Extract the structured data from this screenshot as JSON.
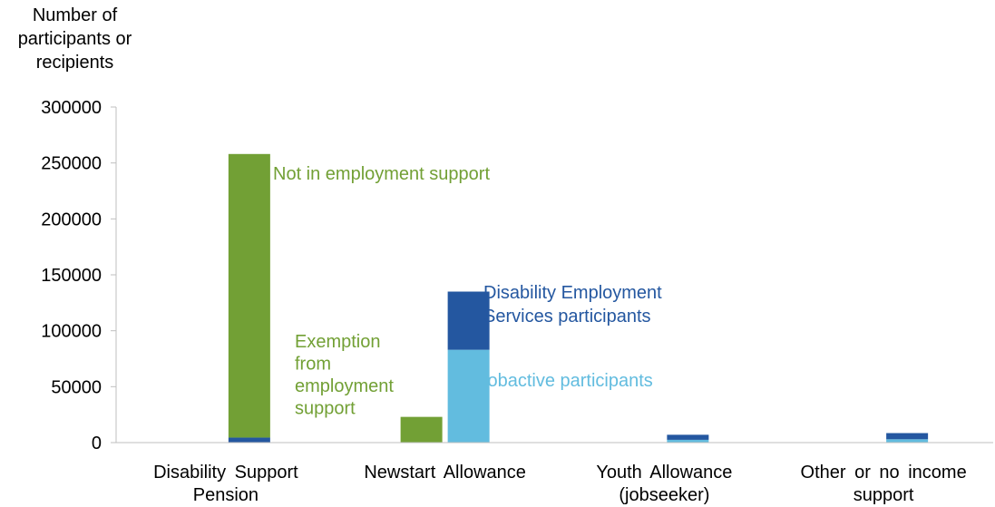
{
  "chart_data": {
    "type": "bar",
    "stacked": true,
    "ylabel": "Number of participants or recipients",
    "ylim": [
      0,
      300000
    ],
    "yticks": [
      0,
      50000,
      100000,
      150000,
      200000,
      250000,
      300000
    ],
    "grid": false,
    "categories": [
      "Disability Support Pension",
      "Newstart Allowance",
      "Youth Allowance (jobseeker)",
      "Other or no income support"
    ],
    "bars": [
      {
        "category_index": 0,
        "group": "right",
        "segments": [
          {
            "series": "des",
            "value": 4500
          },
          {
            "series": "not_in_es",
            "value": 253500
          }
        ]
      },
      {
        "category_index": 1,
        "group": "left",
        "segments": [
          {
            "series": "exemption",
            "value": 23000
          }
        ]
      },
      {
        "category_index": 1,
        "group": "right",
        "segments": [
          {
            "series": "jobactive",
            "value": 83000
          },
          {
            "series": "des",
            "value": 52000
          }
        ]
      },
      {
        "category_index": 2,
        "group": "right",
        "segments": [
          {
            "series": "jobactive",
            "value": 2500
          },
          {
            "series": "des",
            "value": 4500
          }
        ]
      },
      {
        "category_index": 3,
        "group": "right",
        "segments": [
          {
            "series": "jobactive",
            "value": 3000
          },
          {
            "series": "des",
            "value": 5500
          }
        ]
      }
    ],
    "series_colors": {
      "not_in_es": "#72A035",
      "exemption": "#72A035",
      "des": "#2457A0",
      "jobactive": "#62BCDF"
    },
    "annotations": [
      {
        "id": "not_in_es",
        "lines": [
          "Not in employment support"
        ],
        "color": "#72A035"
      },
      {
        "id": "des",
        "lines": [
          "Disability Employment",
          "Services participants"
        ],
        "color": "#2457A0"
      },
      {
        "id": "exemption",
        "lines": [
          "Exemption",
          "from",
          "employment",
          "support"
        ],
        "color": "#72A035"
      },
      {
        "id": "jobactive",
        "lines": [
          "jobactive participants"
        ],
        "color": "#62BCDF"
      }
    ]
  }
}
